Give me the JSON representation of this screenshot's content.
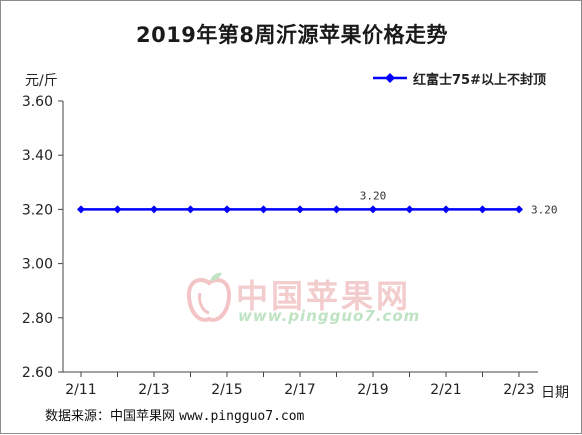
{
  "chart_data": {
    "type": "line",
    "title": "2019年第8周沂源苹果价格走势",
    "ylabel": "元/斤",
    "xlabel": "日期",
    "ylim": [
      2.6,
      3.6
    ],
    "yticks": [
      "3.60",
      "3.40",
      "3.20",
      "3.00",
      "2.80",
      "2.60"
    ],
    "ytick_values": [
      3.6,
      3.4,
      3.2,
      3.0,
      2.8,
      2.6
    ],
    "categories": [
      "2/11",
      "",
      "2/13",
      "",
      "2/15",
      "",
      "2/17",
      "",
      "2/19",
      "",
      "2/21",
      "",
      "2/23"
    ],
    "series": [
      {
        "name": "红富士75#以上不封顶",
        "color": "#0000ff",
        "values": [
          3.2,
          3.2,
          3.2,
          3.2,
          3.2,
          3.2,
          3.2,
          3.2,
          3.2,
          3.2,
          3.2,
          3.2,
          3.2
        ]
      }
    ],
    "data_labels": [
      {
        "index": 8,
        "text": "3.20",
        "position": "above"
      },
      {
        "index": 12,
        "text": "3.20",
        "position": "right"
      }
    ],
    "legend_position": "top-right",
    "grid": false
  },
  "source": {
    "label": "数据来源：中国苹果网",
    "url": "www.pingguo7.com"
  },
  "watermark": {
    "name": "中国苹果网",
    "url": "www.pingguo7.com"
  }
}
